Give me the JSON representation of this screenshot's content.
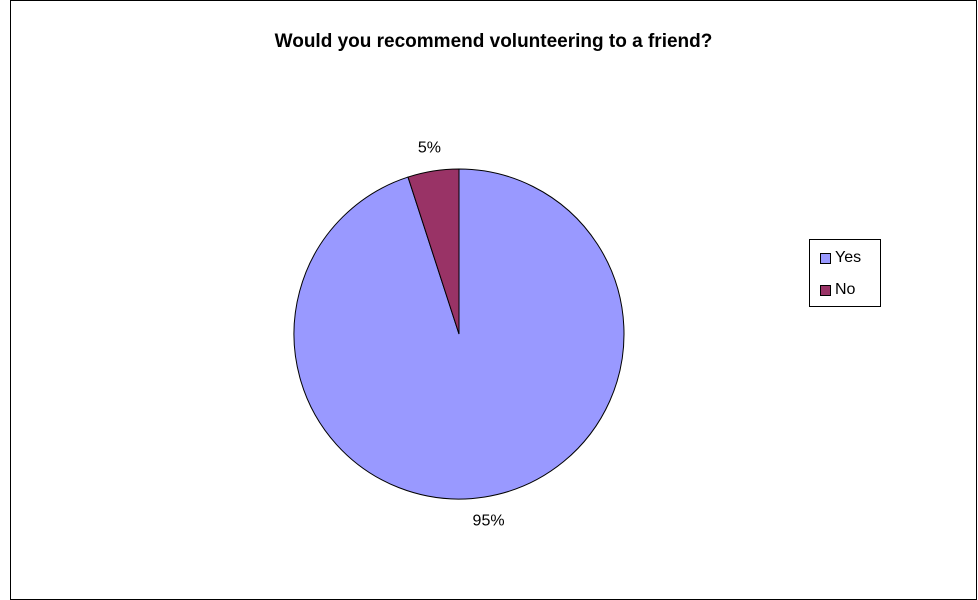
{
  "chart_data": {
    "type": "pie",
    "title": "Would you recommend volunteering to a friend?",
    "categories": [
      "Yes",
      "No"
    ],
    "values": [
      95,
      5
    ],
    "data_labels": [
      "95%",
      "5%"
    ],
    "colors": [
      "#9999ff",
      "#993366"
    ],
    "legend_position": "right"
  }
}
